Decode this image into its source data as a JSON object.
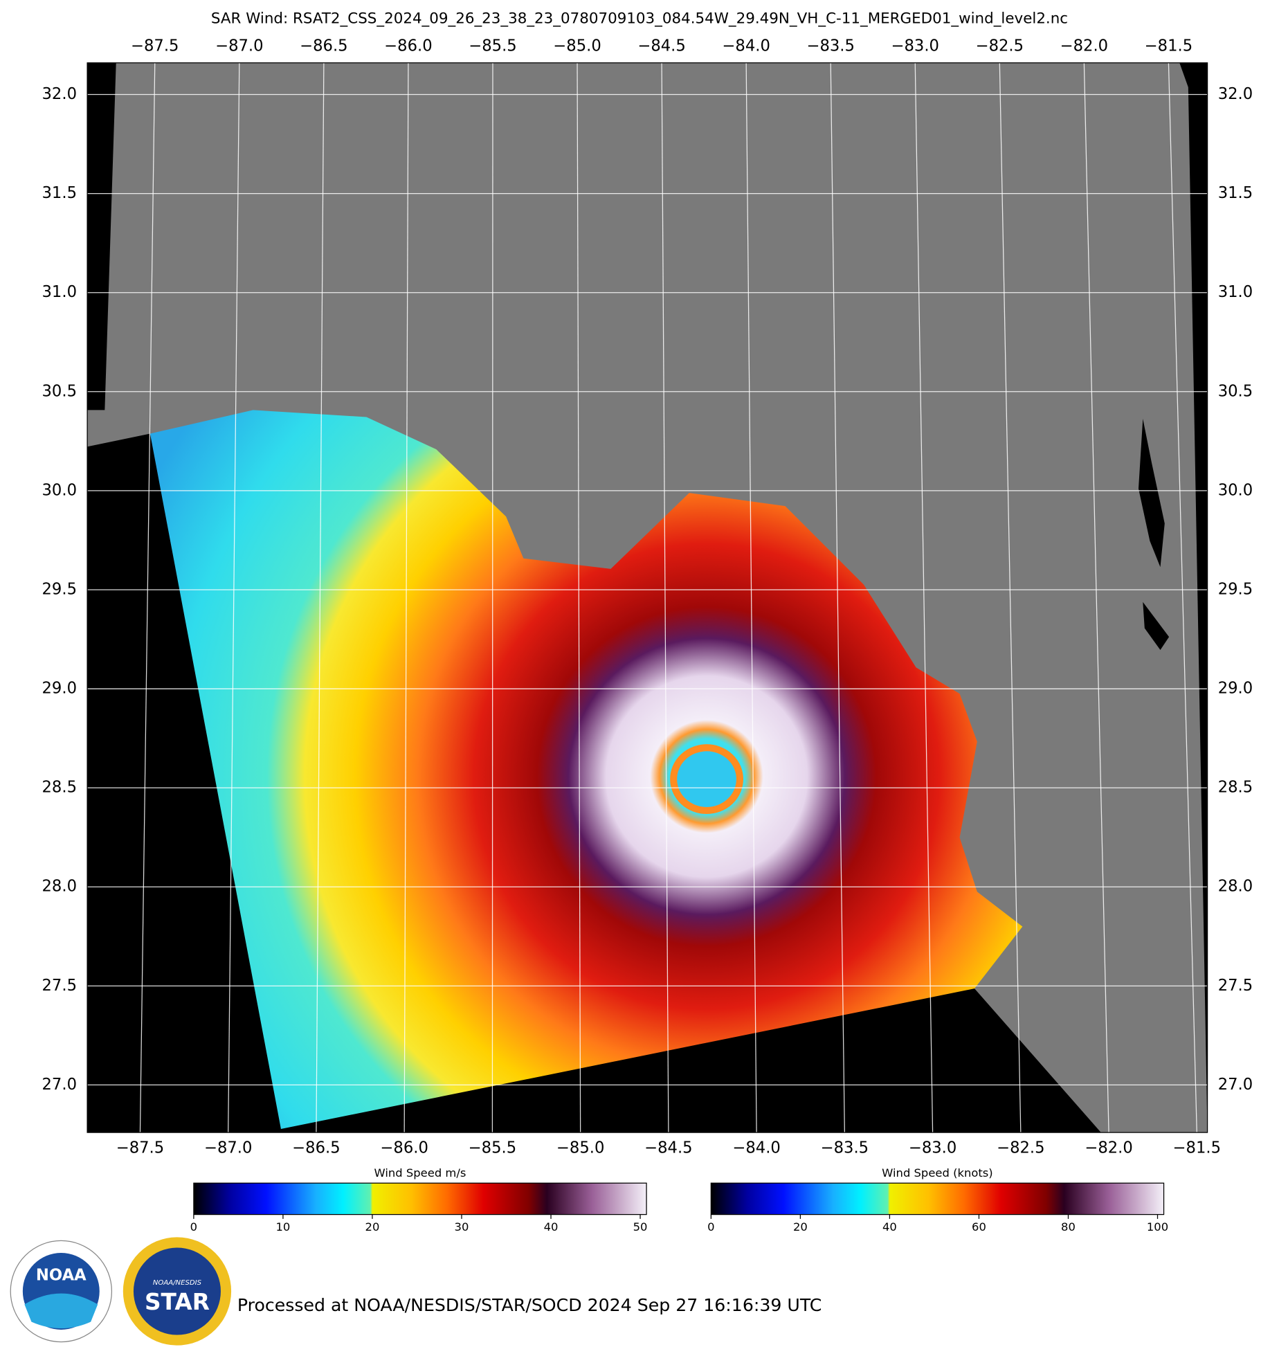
{
  "title": "SAR Wind: RSAT2_CSS_2024_09_26_23_38_23_0780709103_084.54W_29.49N_VH_C-11_MERGED01_wind_level2.nc",
  "map": {
    "lon_lim_top": [
      -87.9,
      -81.27
    ],
    "lon_lim_bottom": [
      -87.8,
      -81.44
    ],
    "lat_lim": [
      26.76,
      32.16
    ],
    "lon_ticks": [
      {
        "value": -87.5,
        "label": "−87.5"
      },
      {
        "value": -87.0,
        "label": "−87.0"
      },
      {
        "value": -86.5,
        "label": "−86.5"
      },
      {
        "value": -86.0,
        "label": "−86.0"
      },
      {
        "value": -85.5,
        "label": "−85.5"
      },
      {
        "value": -85.0,
        "label": "−85.0"
      },
      {
        "value": -84.5,
        "label": "−84.5"
      },
      {
        "value": -84.0,
        "label": "−84.0"
      },
      {
        "value": -83.5,
        "label": "−83.5"
      },
      {
        "value": -83.0,
        "label": "−83.0"
      },
      {
        "value": -82.5,
        "label": "−82.5"
      },
      {
        "value": -82.0,
        "label": "−82.0"
      },
      {
        "value": -81.5,
        "label": "−81.5"
      }
    ],
    "lat_ticks": [
      {
        "value": 32.0,
        "label": "32.0"
      },
      {
        "value": 31.5,
        "label": "31.5"
      },
      {
        "value": 31.0,
        "label": "31.0"
      },
      {
        "value": 30.5,
        "label": "30.5"
      },
      {
        "value": 30.0,
        "label": "30.0"
      },
      {
        "value": 29.5,
        "label": "29.5"
      },
      {
        "value": 29.0,
        "label": "29.0"
      },
      {
        "value": 28.5,
        "label": "28.5"
      },
      {
        "value": 28.0,
        "label": "28.0"
      },
      {
        "value": 27.5,
        "label": "27.5"
      },
      {
        "value": 27.0,
        "label": "27.0"
      }
    ]
  },
  "colorbars": [
    {
      "label": "Wind Speed m/s",
      "lim": [
        0,
        50.7
      ],
      "ticks": [
        0,
        10,
        20,
        30,
        40,
        50
      ]
    },
    {
      "label": "Wind Speed (knots)",
      "lim": [
        0,
        101.4
      ],
      "ticks": [
        0,
        20,
        40,
        60,
        80,
        100
      ]
    }
  ],
  "logos": {
    "noaa": "NOAA",
    "star_top": "NOAA/NESDIS",
    "star": "STAR"
  },
  "footer": "Processed at NOAA/NESDIS/STAR/SOCD 2024 Sep 27 16:16:39 UTC"
}
